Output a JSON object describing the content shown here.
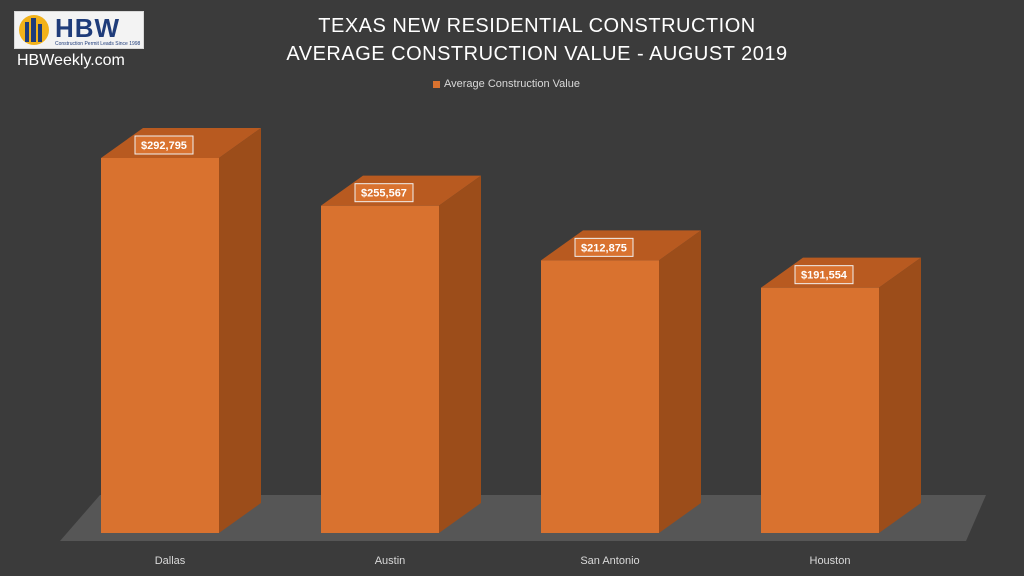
{
  "logo": {
    "text": "HBW",
    "tagline": "Construction Permit Leads Since 1998"
  },
  "site_name": "HBWeekly.com",
  "colors": {
    "background": "#3b3b3b",
    "bar_front": "#d9722f",
    "bar_top": "#b85a20",
    "bar_side": "#9c4d1a",
    "floor": "#5a5a5a",
    "label_bg": "#d9722f"
  },
  "chart_data": {
    "type": "bar",
    "title": "TEXAS NEW RESIDENTIAL CONSTRUCTION",
    "subtitle": "AVERAGE CONSTRUCTION VALUE - AUGUST 2019",
    "categories": [
      "Dallas",
      "Austin",
      "San Antonio",
      "Houston"
    ],
    "series": [
      {
        "name": "Average Construction Value",
        "values": [
          292795,
          255567,
          212875,
          191554
        ],
        "labels": [
          "$292,795",
          "$255,567",
          "$212,875",
          "$191,554"
        ]
      }
    ],
    "legend_position": "top-center",
    "ylim": [
      0,
      300000
    ],
    "grid": false,
    "style": "3d"
  }
}
